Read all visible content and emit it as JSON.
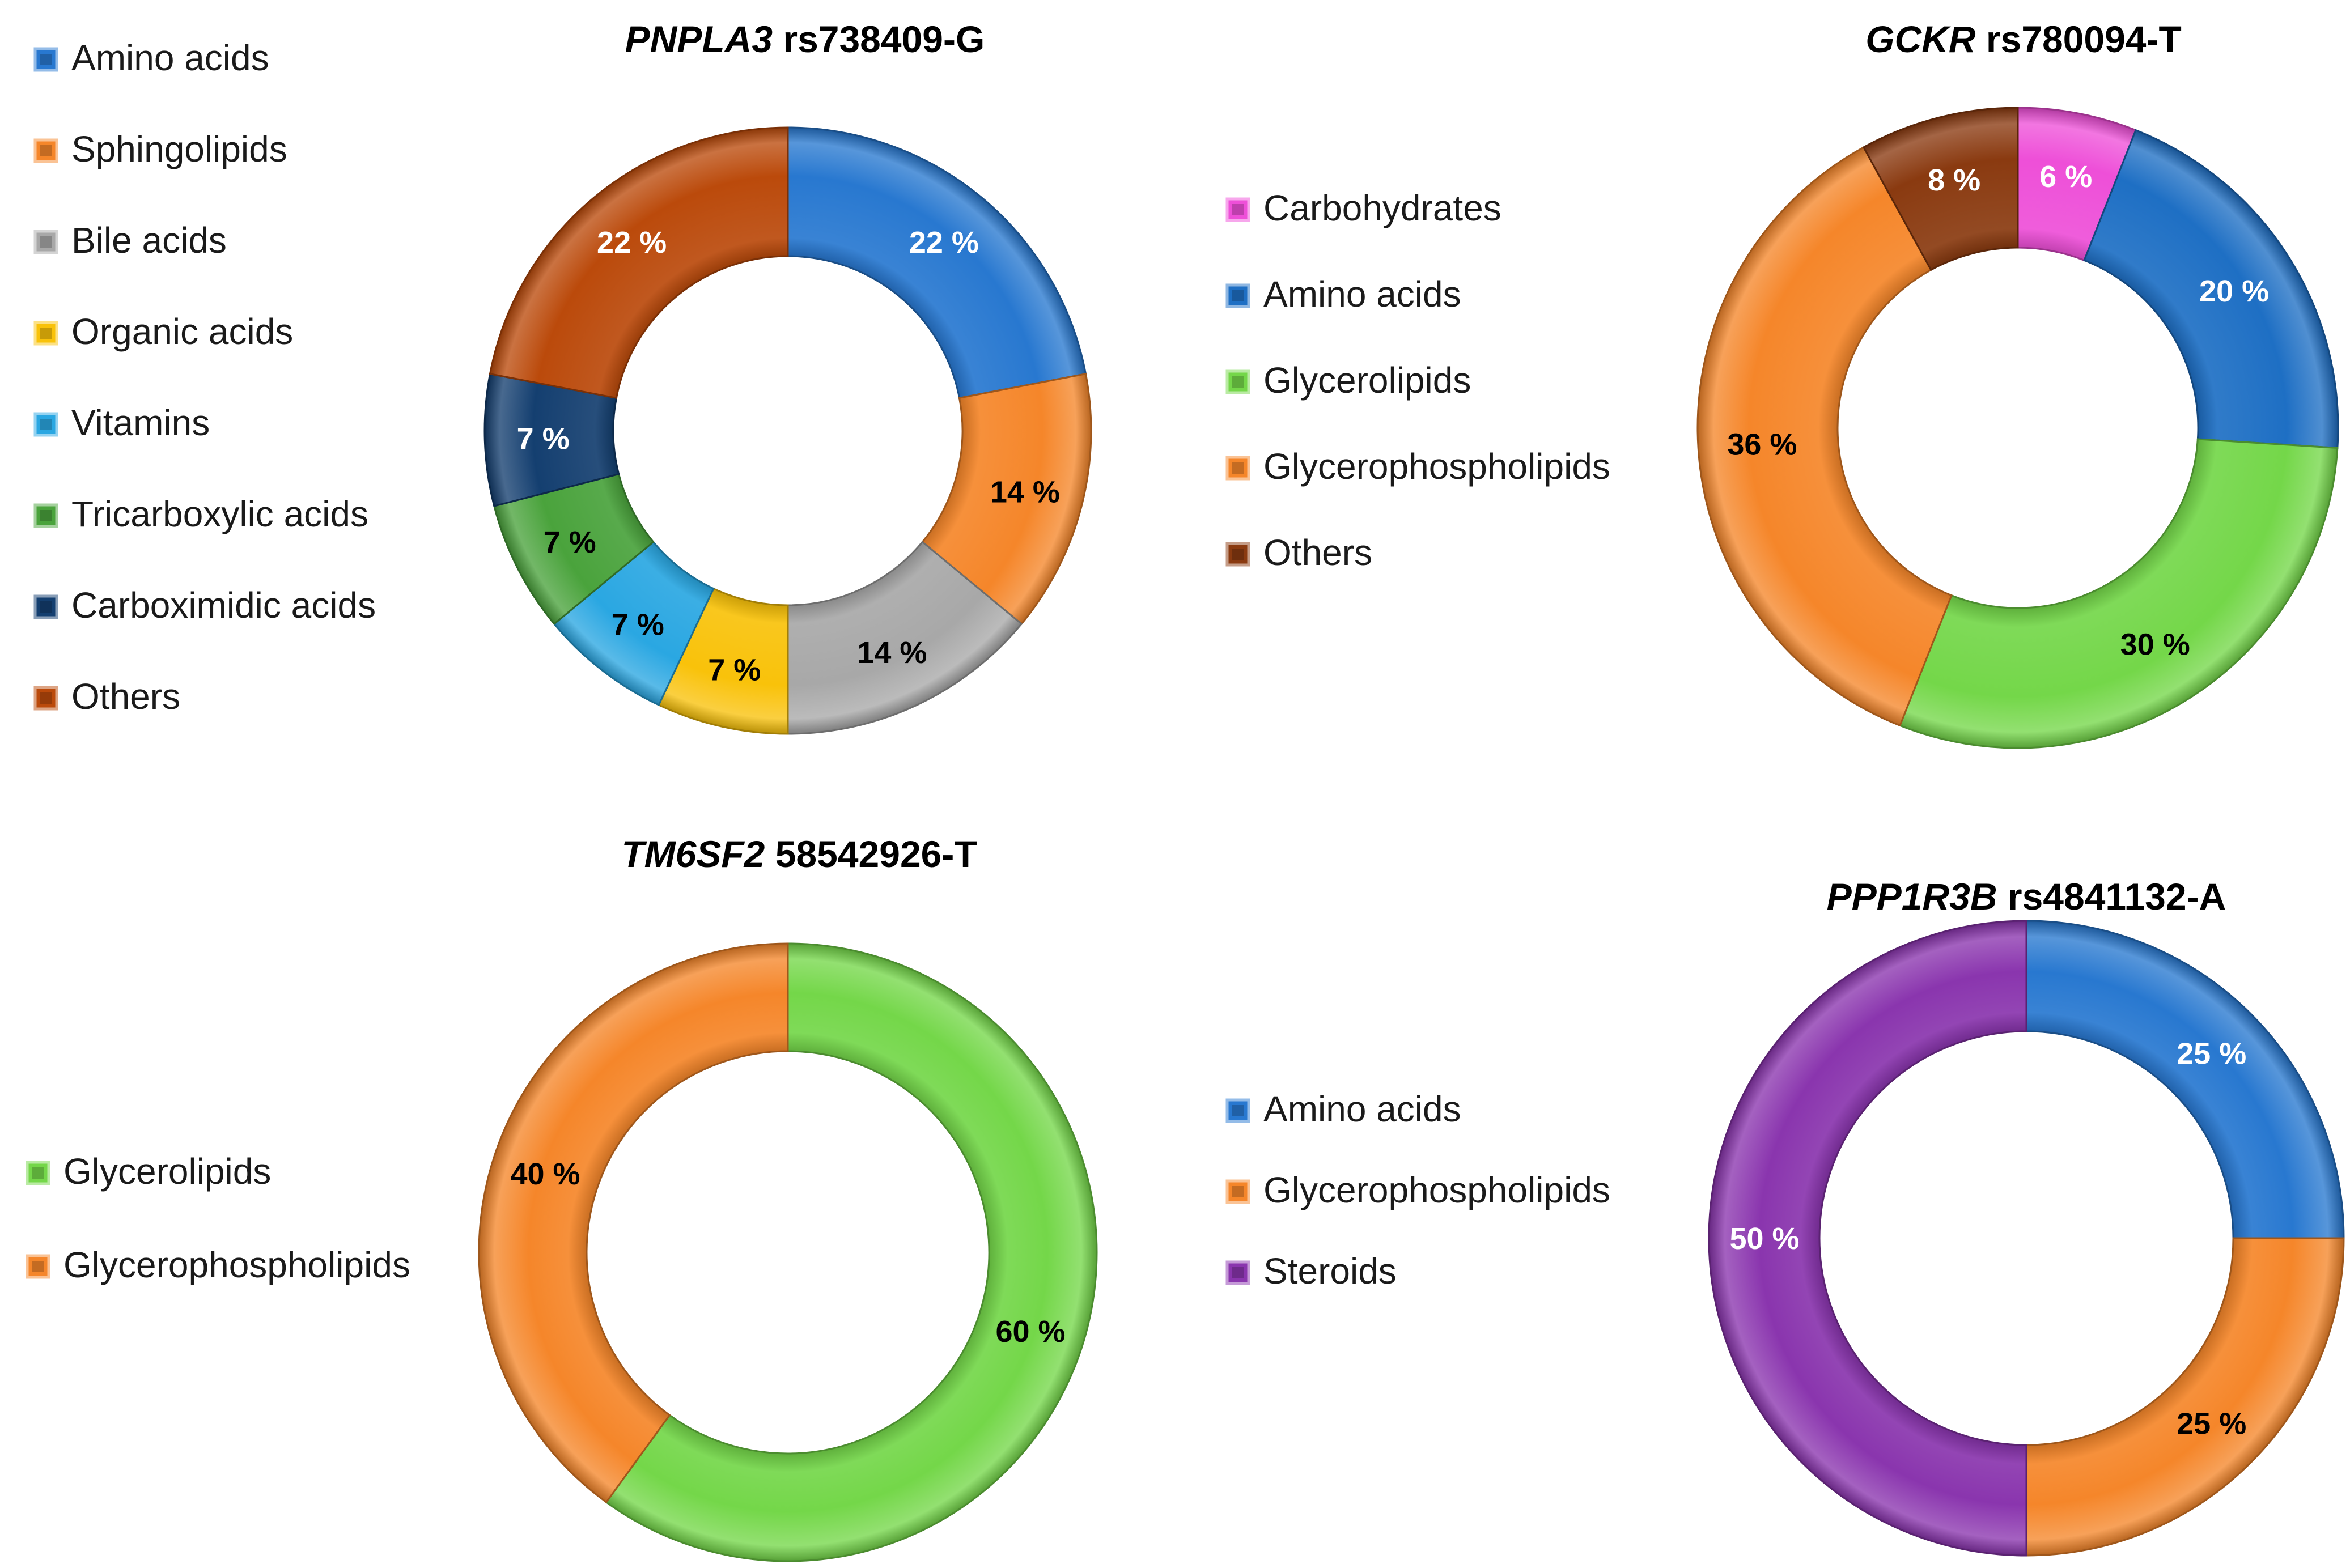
{
  "chart_data": [
    {
      "type": "pie",
      "variant": "donut",
      "title": "PNPLA3 rs738409-G",
      "title_gene": "PNPLA3",
      "title_variant": "rs738409-G",
      "legend_position": "left",
      "legend": [
        "Amino acids",
        "Sphingolipids",
        "Bile acids",
        "Organic acids",
        "Vitamins",
        "Tricarboxylic acids",
        "Carboximidic acids",
        "Others"
      ],
      "slices": [
        {
          "category": "Amino acids",
          "value": 22,
          "label": "22 %",
          "color": "#2878d0",
          "label_color": "#ffffff"
        },
        {
          "category": "Sphingolipids",
          "value": 14,
          "label": "14 %",
          "color": "#f5862a",
          "label_color": "#000000"
        },
        {
          "category": "Bile acids",
          "value": 14,
          "label": "14 %",
          "color": "#a8a8a8",
          "label_color": "#000000"
        },
        {
          "category": "Organic acids",
          "value": 7,
          "label": "7 %",
          "color": "#f9c20a",
          "label_color": "#000000"
        },
        {
          "category": "Vitamins",
          "value": 7,
          "label": "7 %",
          "color": "#2aa7e2",
          "label_color": "#000000"
        },
        {
          "category": "Tricarboxylic acids",
          "value": 7,
          "label": "7 %",
          "color": "#4aa33c",
          "label_color": "#000000"
        },
        {
          "category": "Carboximidic acids",
          "value": 7,
          "label": "7 %",
          "color": "#143f70",
          "label_color": "#ffffff"
        },
        {
          "category": "Others",
          "value": 22,
          "label": "22 %",
          "color": "#bb4a0b",
          "label_color": "#ffffff"
        }
      ]
    },
    {
      "type": "pie",
      "variant": "donut",
      "title": "GCKR rs780094-T",
      "title_gene": "GCKR",
      "title_variant": "rs780094-T",
      "legend_position": "left",
      "legend": [
        "Carbohydrates",
        "Amino acids",
        "Glycerolipids",
        "Glycerophospholipids",
        "Others"
      ],
      "slices": [
        {
          "category": "Carbohydrates",
          "value": 6,
          "label": "6 %",
          "color": "#ee4fd8",
          "label_color": "#ffffff"
        },
        {
          "category": "Amino acids",
          "value": 20,
          "label": "20 %",
          "color": "#1e6fc4",
          "label_color": "#ffffff"
        },
        {
          "category": "Glycerolipids",
          "value": 30,
          "label": "30 %",
          "color": "#74d749",
          "label_color": "#000000"
        },
        {
          "category": "Glycerophospholipids",
          "value": 36,
          "label": "36 %",
          "color": "#f5862a",
          "label_color": "#000000"
        },
        {
          "category": "Others",
          "value": 8,
          "label": "8 %",
          "color": "#8a3a10",
          "label_color": "#ffffff"
        }
      ]
    },
    {
      "type": "pie",
      "variant": "donut",
      "title": "TM6SF2 58542926-T",
      "title_gene": "TM6SF2",
      "title_variant": "58542926-T",
      "legend_position": "left",
      "legend": [
        "Glycerolipids",
        "Glycerophospholipids"
      ],
      "slices": [
        {
          "category": "Glycerolipids",
          "value": 60,
          "label": "60 %",
          "color": "#74d749",
          "label_color": "#000000"
        },
        {
          "category": "Glycerophospholipids",
          "value": 40,
          "label": "40 %",
          "color": "#f5862a",
          "label_color": "#000000"
        }
      ]
    },
    {
      "type": "pie",
      "variant": "donut",
      "title": "PPP1R3B rs4841132-A",
      "title_gene": "PPP1R3B",
      "title_variant": "rs4841132-A",
      "legend_position": "left",
      "legend": [
        "Amino acids",
        "Glycerophospholipids",
        "Steroids"
      ],
      "slices": [
        {
          "category": "Amino acids",
          "value": 25,
          "label": "25 %",
          "color": "#2878d0",
          "label_color": "#ffffff"
        },
        {
          "category": "Glycerophospholipids",
          "value": 25,
          "label": "25 %",
          "color": "#f5862a",
          "label_color": "#000000"
        },
        {
          "category": "Steroids",
          "value": 50,
          "label": "50 %",
          "color": "#8a35ae",
          "label_color": "#ffffff"
        }
      ]
    }
  ]
}
